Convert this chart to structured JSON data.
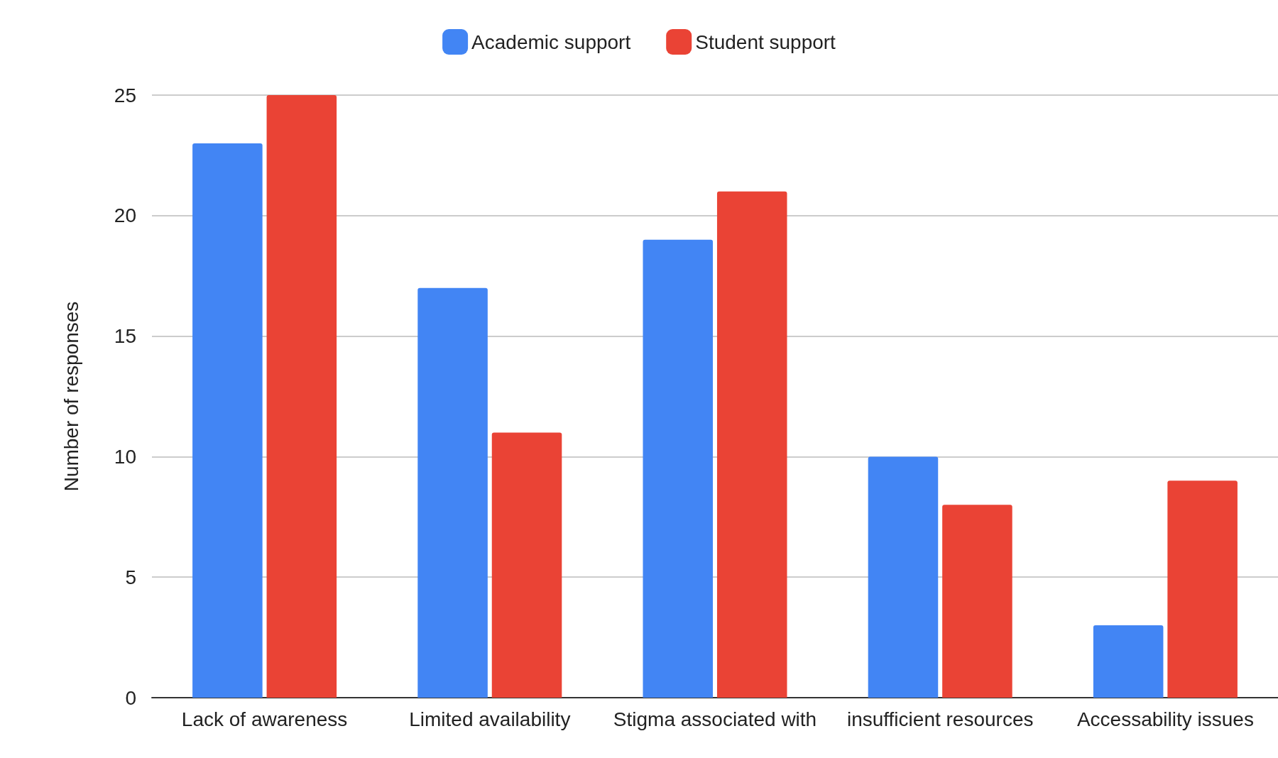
{
  "chart_data": {
    "type": "bar",
    "ylabel": "Number of responses",
    "categories": [
      "Lack of awareness",
      "Limited availability",
      "Stigma associated with",
      "insufficient resources",
      "Accessability issues"
    ],
    "series": [
      {
        "name": "Academic support",
        "color": "#4285f4",
        "values": [
          23,
          17,
          19,
          10,
          3
        ]
      },
      {
        "name": "Student support",
        "color": "#ea4335",
        "values": [
          25,
          11,
          21,
          8,
          9
        ]
      }
    ],
    "ylim": [
      0,
      25
    ],
    "yticks": [
      0,
      5,
      10,
      15,
      20,
      25
    ],
    "grid": "y",
    "legend": "top"
  }
}
